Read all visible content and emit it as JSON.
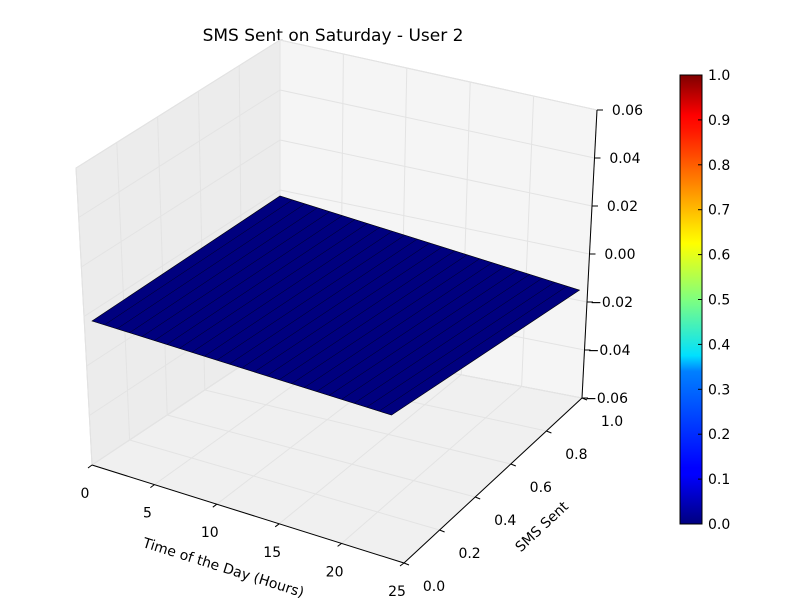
{
  "chart_data": {
    "type": "surface3d",
    "title": "SMS Sent on Saturday - User 2",
    "xlabel": "Time of the Day (Hours)",
    "ylabel": "SMS Sent",
    "zlabel": "",
    "xlim": [
      0,
      25
    ],
    "ylim": [
      0.0,
      1.0
    ],
    "zlim": [
      -0.06,
      0.06
    ],
    "x_ticks": [
      "0",
      "5",
      "10",
      "15",
      "20",
      "25"
    ],
    "y_ticks": [
      "0.0",
      "0.2",
      "0.4",
      "0.6",
      "0.8",
      "1.0"
    ],
    "z_ticks": [
      "−0.06",
      "−0.04",
      "−0.02",
      "0.00",
      "0.02",
      "0.04",
      "0.06"
    ],
    "surface": {
      "x_range": [
        0,
        24
      ],
      "y_range": [
        0.0,
        1.0
      ],
      "z_value": 0.0,
      "color": "#00007f"
    },
    "grid": true,
    "colorbar": {
      "colormap": "jet",
      "range": [
        0.0,
        1.0
      ],
      "ticks": [
        "0.0",
        "0.1",
        "0.2",
        "0.3",
        "0.4",
        "0.5",
        "0.6",
        "0.7",
        "0.8",
        "0.9",
        "1.0"
      ]
    },
    "colors": {
      "pane": "#f2f2f2",
      "grid": "#e3e3e3",
      "surface_edge": "#000000"
    }
  }
}
